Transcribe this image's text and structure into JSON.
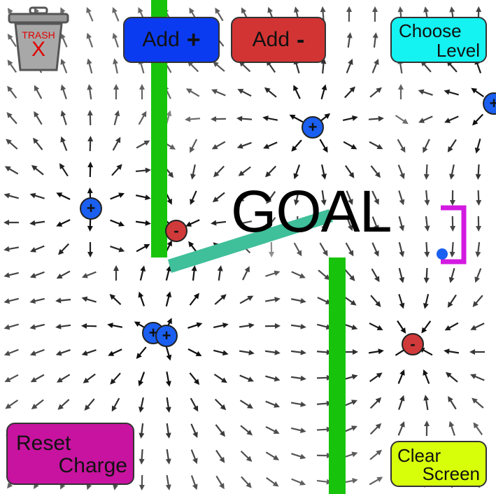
{
  "toolbar": {
    "add_positive": {
      "label": "Add",
      "symbol": "+"
    },
    "add_negative": {
      "label": "Add",
      "symbol": "-"
    },
    "choose_level": {
      "line1": "Choose",
      "line2": "Level"
    },
    "reset_charge": {
      "line1": "Reset",
      "line2": "Charge"
    },
    "clear_screen": {
      "line1": "Clear",
      "line2": "Screen"
    }
  },
  "trash": {
    "word": "TRASH",
    "mark": "X"
  },
  "goal": {
    "text": "GOAL"
  },
  "charges": [
    {
      "sign": "+",
      "symbol": "+"
    },
    {
      "sign": "+",
      "symbol": "+"
    },
    {
      "sign": "+",
      "symbol": "+"
    },
    {
      "sign": "+",
      "symbol": "+"
    },
    {
      "sign": "+",
      "symbol": "+"
    },
    {
      "sign": "-",
      "symbol": "-"
    },
    {
      "sign": "-",
      "symbol": "-"
    }
  ],
  "colors": {
    "add_positive": "#0b3bf0",
    "add_negative": "#d23434",
    "choose_level": "#14f2f2",
    "reset_charge": "#c7139f",
    "clear_screen": "#d8ff0a",
    "positive_charge": "#1a5ff0",
    "negative_charge": "#d03a3a",
    "wall": "#17c40b",
    "goal_bar": "#3fbf9a",
    "goal_bracket": "#d21ae0",
    "puck": "#1a5ff0",
    "trash_mark": "#e10000"
  }
}
